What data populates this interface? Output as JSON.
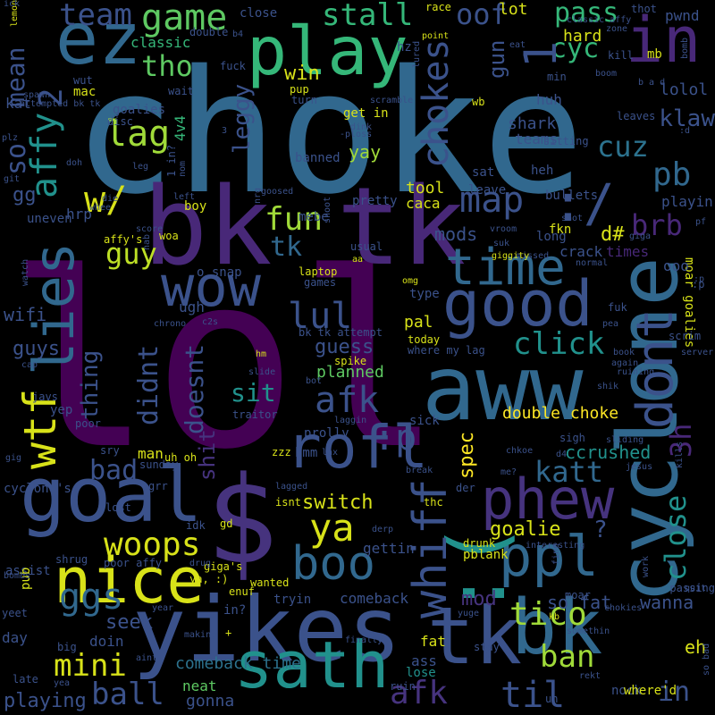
{
  "palette": {
    "background": "#000000",
    "purple": "#440154",
    "indigo": "#3b528b",
    "blue": "#31688e",
    "teal": "#21918c",
    "green": "#35b779",
    "yellow": "#d8e219"
  },
  "words": [
    {
      "text": "choke",
      "color": "#31688e"
    },
    {
      "text": "lol",
      "color": "#440154"
    },
    {
      "text": "bk tk",
      "color": "#482878"
    },
    {
      "text": "$",
      "color": "#46337e"
    },
    {
      "text": "aww",
      "color": "#31688e"
    },
    {
      "text": "yikes",
      "color": "#3b528b"
    },
    {
      "text": "goal",
      "color": "#3b528b"
    },
    {
      "text": "play",
      "color": "#35b779"
    },
    {
      "text": "cyclone",
      "color": "#31688e"
    },
    {
      "text": "tk",
      "color": "#3b528b"
    },
    {
      "text": "bk",
      "color": "#31688e"
    },
    {
      "text": "in",
      "color": "#482878"
    },
    {
      "text": "ez",
      "color": "#31688e"
    },
    {
      "text": "wow",
      "color": "#3b528b"
    },
    {
      "text": "good",
      "color": "#3b528b"
    },
    {
      "text": "nice",
      "color": "#d8e219"
    },
    {
      "text": "sath",
      "color": "#21918c"
    },
    {
      "text": "rofl",
      "color": "#3b528b"
    },
    {
      "text": "phew",
      "color": "#46337e"
    },
    {
      "text": "ppl",
      "color": "#31688e"
    },
    {
      "text": ":(",
      "color": "#21918c"
    },
    {
      "text": "dont",
      "color": "#3b528b"
    },
    {
      "text": "time",
      "color": "#31688e"
    },
    {
      "text": "lag",
      "color": "#a0da39"
    },
    {
      "text": "map",
      "color": "#3b528b"
    },
    {
      "text": ":/",
      "color": "#3b528b"
    },
    {
      "text": "game",
      "color": "#5ec962"
    },
    {
      "text": "wtf",
      "color": "#d8e219"
    },
    {
      "text": "lies",
      "color": "#31688e"
    },
    {
      "text": "boo",
      "color": "#31688e"
    },
    {
      "text": "whiff",
      "color": "#3b528b"
    },
    {
      "text": "chokes",
      "color": "#3b528b"
    },
    {
      "text": "lul",
      "color": "#3b528b"
    },
    {
      "text": "afk",
      "color": "#3b528b"
    },
    {
      "text": "click",
      "color": "#21918c"
    },
    {
      "text": "fun",
      "color": "#a0da39"
    },
    {
      "text": "woops",
      "color": "#d8e219"
    },
    {
      "text": "ya",
      "color": "#d8e219"
    },
    {
      "text": "ggs",
      "color": "#31688e"
    },
    {
      "text": "mini",
      "color": "#d8e219"
    },
    {
      "text": "ball",
      "color": "#3b528b"
    },
    {
      "text": "til",
      "color": "#3b528b"
    },
    {
      "text": "afk",
      "color": "#46337e"
    },
    {
      "text": "ban",
      "color": "#a0da39"
    },
    {
      "text": "tico",
      "color": "#a0da39"
    },
    {
      "text": "katt",
      "color": "#31688e"
    },
    {
      "text": "bad",
      "color": "#3b528b"
    },
    {
      "text": "guy",
      "color": "#bddf26"
    },
    {
      "text": "pb",
      "color": "#31688e"
    },
    {
      "text": "cuz",
      "color": "#2c728e"
    },
    {
      "text": "brb",
      "color": "#482878"
    },
    {
      "text": "team",
      "color": "#3b528b"
    },
    {
      "text": "stall",
      "color": "#35b779"
    },
    {
      "text": "oof",
      "color": "#3b528b"
    },
    {
      "text": "pass",
      "color": "#35b779"
    },
    {
      "text": "cyc",
      "color": "#35b779"
    },
    {
      "text": "tho",
      "color": "#5ec962"
    },
    {
      "text": "lolol",
      "color": "#3b528b"
    },
    {
      "text": "klaw",
      "color": "#3b528b"
    },
    {
      "text": "3h",
      "color": "#482878"
    },
    {
      "text": "close",
      "color": "#21918c"
    },
    {
      "text": "so",
      "color": "#3b528b"
    },
    {
      "text": ":p",
      "color": "#3b528b"
    },
    {
      "text": "spec",
      "color": "#fde725"
    },
    {
      "text": "double choke",
      "color": "#fde725"
    },
    {
      "text": "sit",
      "color": "#21918c"
    },
    {
      "text": "didnt",
      "color": "#3b528b"
    },
    {
      "text": "doesnt",
      "color": "#3b528b"
    },
    {
      "text": "shit",
      "color": "#46337e"
    },
    {
      "text": "thing",
      "color": "#3b528b"
    },
    {
      "text": "switch",
      "color": "#d8e219"
    },
    {
      "text": "goalie",
      "color": "#d8e219"
    },
    {
      "text": "guess",
      "color": "#3b528b"
    },
    {
      "text": "planned",
      "color": "#5ec962"
    },
    {
      "text": "comeback time",
      "color": "#2c728e"
    },
    {
      "text": "seek",
      "color": "#3b528b"
    },
    {
      "text": "so fat",
      "color": "#3b528b"
    },
    {
      "text": "wanna",
      "color": "#3b528b"
    },
    {
      "text": "mod",
      "color": "#46337e"
    },
    {
      "text": "ccrushed",
      "color": "#21918c"
    },
    {
      "text": "leggy",
      "color": "#3b528b"
    },
    {
      "text": "tk",
      "color": "#31688e"
    },
    {
      "text": "mods",
      "color": "#3b528b"
    },
    {
      "text": "gun",
      "color": "#3b528b"
    },
    {
      "text": "hard",
      "color": "#d8e219"
    },
    {
      "text": "mean",
      "color": "#3b528b"
    },
    {
      "text": "affy",
      "color": "#21918c"
    },
    {
      "text": "2",
      "color": "#3b528b"
    },
    {
      "text": "1",
      "color": "#3b528b"
    },
    {
      "text": "w/",
      "color": "#d8e219"
    },
    {
      "text": "playing",
      "color": "#3b528b"
    },
    {
      "text": "gonna",
      "color": "#3b528b"
    },
    {
      "text": "neat",
      "color": "#5ec962"
    },
    {
      "text": "guys",
      "color": "#3b528b"
    },
    {
      "text": "wifi",
      "color": "#3b528b"
    },
    {
      "text": "win",
      "color": "#d8e219"
    },
    {
      "text": "classic",
      "color": "#35b779"
    },
    {
      "text": "tool",
      "color": "#d8e219"
    },
    {
      "text": "caca",
      "color": "#d8e219"
    },
    {
      "text": "yay",
      "color": "#a0da39"
    },
    {
      "text": "pal",
      "color": "#d8e219"
    },
    {
      "text": "d#",
      "color": "#d8e219"
    },
    {
      "text": "shark",
      "color": "#3b528b"
    },
    {
      "text": "teams",
      "color": "#3b528b"
    },
    {
      "text": "huh",
      "color": "#3b528b"
    },
    {
      "text": "heh",
      "color": "#3b528b"
    },
    {
      "text": "fat",
      "color": "#d8e219"
    },
    {
      "text": "ass",
      "color": "#3b528b"
    },
    {
      "text": "lose",
      "color": "#21918c"
    },
    {
      "text": "day",
      "color": "#3b528b"
    },
    {
      "text": "doin",
      "color": "#3b528b"
    },
    {
      "text": "man",
      "color": "#d8e219"
    },
    {
      "text": "moar goalies",
      "color": "#d8e219"
    },
    {
      "text": "ooo",
      "color": "#3b528b"
    },
    {
      "text": "crack",
      "color": "#3b528b"
    },
    {
      "text": "times",
      "color": "#482878"
    },
    {
      "text": "ugh",
      "color": "#3b528b"
    },
    {
      "text": "?",
      "color": "#3b528b"
    },
    {
      "text": "eh",
      "color": "#d8e219"
    },
    {
      "text": "in",
      "color": "#3b528b"
    },
    {
      "text": "gg",
      "color": "#3b528b"
    },
    {
      "text": "hrp",
      "color": "#3b528b"
    },
    {
      "text": "mebe",
      "color": "#3b528b"
    },
    {
      "text": "banned",
      "color": "#3b528b"
    },
    {
      "text": "get in",
      "color": "#d8e219"
    },
    {
      "text": "playin",
      "color": "#3b528b"
    },
    {
      "text": "pwnd",
      "color": "#3b528b"
    },
    {
      "text": "mb",
      "color": "#d8e219"
    },
    {
      "text": "min",
      "color": "#3b528b"
    },
    {
      "text": "kill",
      "color": "#3b528b"
    },
    {
      "text": "thot",
      "color": "#3b528b"
    },
    {
      "text": "lot",
      "color": "#d8e219"
    },
    {
      "text": "race",
      "color": "#d8e219"
    },
    {
      "text": "close",
      "color": "#3b528b"
    },
    {
      "text": "double",
      "color": "#3b528b"
    },
    {
      "text": "fuck",
      "color": "#3b528b"
    },
    {
      "text": "hz",
      "color": "#3b528b"
    },
    {
      "text": "point",
      "color": "#d8e219"
    },
    {
      "text": "eat",
      "color": "#3b528b"
    },
    {
      "text": "zone",
      "color": "#3b528b"
    },
    {
      "text": "kat",
      "color": "#3b528b"
    },
    {
      "text": "mac",
      "color": "#d8e219"
    },
    {
      "text": "wait",
      "color": "#3b528b"
    },
    {
      "text": "pup",
      "color": "#d8e219"
    },
    {
      "text": "turn",
      "color": "#3b528b"
    },
    {
      "text": "wb",
      "color": "#d8e219"
    },
    {
      "text": "goalies",
      "color": "#3b528b"
    },
    {
      "text": "disc",
      "color": "#3b528b"
    },
    {
      "text": "sitting",
      "color": "#3b528b"
    },
    {
      "text": "leaves",
      "color": "#3b528b"
    },
    {
      "text": "b a d",
      "color": "#3b528b"
    },
    {
      "text": "boom",
      "color": "#3b528b"
    },
    {
      "text": "bullets",
      "color": "#3b528b"
    },
    {
      "text": "shot",
      "color": "#3b528b"
    },
    {
      "text": "fkn",
      "color": "#d8e219"
    },
    {
      "text": "sat",
      "color": "#3b528b"
    },
    {
      "text": "leave",
      "color": "#3b528b"
    },
    {
      "text": "pretty",
      "color": "#3b528b"
    },
    {
      "text": "boy",
      "color": "#d8e219"
    },
    {
      "text": "woa",
      "color": "#d8e219"
    },
    {
      "text": "uneven",
      "color": "#3b528b"
    },
    {
      "text": "o snap",
      "color": "#3b528b"
    },
    {
      "text": "laptop",
      "color": "#d8e219"
    },
    {
      "text": "games",
      "color": "#3b528b"
    },
    {
      "text": "type",
      "color": "#3b528b"
    },
    {
      "text": "today",
      "color": "#d8e219"
    },
    {
      "text": "where my lag",
      "color": "#3b528b"
    },
    {
      "text": "bk tk attempt",
      "color": "#3b528b"
    },
    {
      "text": "hm",
      "color": "#d8e219"
    },
    {
      "text": "spike",
      "color": "#d8e219"
    },
    {
      "text": "traitor",
      "color": "#3b528b"
    },
    {
      "text": "sick",
      "color": "#3b528b"
    },
    {
      "text": "prolly",
      "color": "#3b528b"
    },
    {
      "text": "zzz",
      "color": "#d8e219"
    },
    {
      "text": "hmm",
      "color": "#3b528b"
    },
    {
      "text": "lax",
      "color": "#3b528b"
    },
    {
      "text": "gettin",
      "color": "#3b528b"
    },
    {
      "text": "pblank",
      "color": "#d8e219"
    },
    {
      "text": "comeback",
      "color": "#3b528b"
    },
    {
      "text": "isnt",
      "color": "#d8e219"
    },
    {
      "text": "tryin",
      "color": "#3b528b"
    },
    {
      "text": "wanted",
      "color": "#d8e219"
    },
    {
      "text": "giga's",
      "color": "#d8e219"
    },
    {
      "text": "ya, :)",
      "color": "#d8e219"
    },
    {
      "text": "in?",
      "color": "#3b528b"
    },
    {
      "text": "sry",
      "color": "#3b528b"
    },
    {
      "text": "sunday",
      "color": "#3b528b"
    },
    {
      "text": "grr",
      "color": "#3b528b"
    },
    {
      "text": "gd",
      "color": "#d8e219"
    },
    {
      "text": "idk",
      "color": "#3b528b"
    },
    {
      "text": "lost",
      "color": "#3b528b"
    },
    {
      "text": "assist",
      "color": "#3b528b"
    },
    {
      "text": "poor affy",
      "color": "#3b528b"
    },
    {
      "text": "shrug",
      "color": "#3b528b"
    },
    {
      "text": "pub",
      "color": "#d8e219"
    },
    {
      "text": "yeet",
      "color": "#3b528b"
    },
    {
      "text": "late",
      "color": "#3b528b"
    },
    {
      "text": "yep",
      "color": "#3b528b"
    },
    {
      "text": "poor",
      "color": "#3b528b"
    },
    {
      "text": "javs",
      "color": "#3b528b"
    },
    {
      "text": "sliding",
      "color": "#3b528b"
    },
    {
      "text": "jesus",
      "color": "#3b528b"
    },
    {
      "text": "sigh",
      "color": "#3b528b"
    },
    {
      "text": "ruining",
      "color": "#3b528b"
    },
    {
      "text": "scrim",
      "color": "#3b528b"
    },
    {
      "text": "server",
      "color": "#3b528b"
    },
    {
      "text": "book",
      "color": "#3b528b"
    },
    {
      "text": "fuk",
      "color": "#3b528b"
    },
    {
      "text": "long",
      "color": "#3b528b"
    },
    {
      "text": "suk",
      "color": "#3b528b"
    },
    {
      "text": "missed",
      "color": "#3b528b"
    },
    {
      "text": "giggity",
      "color": "#d8e219"
    },
    {
      "text": "vroom",
      "color": "#3b528b"
    },
    {
      "text": "me?",
      "color": "#3b528b"
    },
    {
      "text": "break",
      "color": "#3b528b"
    },
    {
      "text": "der",
      "color": "#3b528b"
    },
    {
      "text": "thc",
      "color": "#d8e219"
    },
    {
      "text": "drunk",
      "color": "#d8e219"
    },
    {
      "text": "interesting",
      "color": "#3b528b"
    },
    {
      "text": "moar",
      "color": "#3b528b"
    },
    {
      "text": "passing",
      "color": "#3b528b"
    },
    {
      "text": "chokies",
      "color": "#3b528b"
    },
    {
      "text": "kb",
      "color": "#d8e219"
    },
    {
      "text": "somethin",
      "color": "#3b528b"
    },
    {
      "text": "rekt",
      "color": "#3b528b"
    },
    {
      "text": "nock",
      "color": "#3b528b"
    },
    {
      "text": "where'd",
      "color": "#d8e219"
    },
    {
      "text": "uh",
      "color": "#3b528b"
    },
    {
      "text": "stay",
      "color": "#3b528b"
    },
    {
      "text": "noo",
      "color": "#3b528b"
    },
    {
      "text": "yuge",
      "color": "#3b528b"
    },
    {
      "text": "ruin",
      "color": "#3b528b"
    },
    {
      "text": "finally",
      "color": "#3b528b"
    },
    {
      "text": "making",
      "color": "#3b528b"
    },
    {
      "text": "aint",
      "color": "#3b528b"
    },
    {
      "text": "big",
      "color": "#3b528b"
    },
    {
      "text": "yea",
      "color": "#3b528b"
    },
    {
      "text": "year",
      "color": "#3b528b"
    },
    {
      "text": "enuf",
      "color": "#d8e219"
    },
    {
      "text": "drug",
      "color": "#3b528b"
    },
    {
      "text": "cyclone's",
      "color": "#3b528b"
    },
    {
      "text": "gig",
      "color": "#3b528b"
    },
    {
      "text": "bombs",
      "color": "#3b528b"
    },
    {
      "text": "cap",
      "color": "#3b528b"
    },
    {
      "text": "watch",
      "color": "#3b528b"
    },
    {
      "text": "chrono",
      "color": "#3b528b"
    },
    {
      "text": "c2s",
      "color": "#3b528b"
    },
    {
      "text": "slide",
      "color": "#3b528b"
    },
    {
      "text": "laggin",
      "color": "#3b528b"
    },
    {
      "text": "bot",
      "color": "#3b528b"
    },
    {
      "text": "shoot",
      "color": "#3b528b"
    },
    {
      "text": "aa",
      "color": "#d8e219"
    },
    {
      "text": "usual",
      "color": "#3b528b"
    },
    {
      "text": "omg",
      "color": "#d8e219"
    },
    {
      "text": "lagged",
      "color": "#3b528b"
    },
    {
      "text": "derp",
      "color": "#3b528b"
    },
    {
      "text": "uh oh",
      "color": "#d8e219"
    },
    {
      "text": "chkoe",
      "color": "#3b528b"
    },
    {
      "text": "d4",
      "color": "#3b528b"
    },
    {
      "text": "kills",
      "color": "#3b528b"
    },
    {
      "text": "shik",
      "color": "#3b528b"
    },
    {
      "text": "again",
      "color": "#3b528b"
    },
    {
      "text": "pea",
      "color": "#3b528b"
    },
    {
      "text": "normal",
      "color": "#3b528b"
    },
    {
      "text": "giga",
      "color": "#3b528b"
    },
    {
      "text": "pf",
      "color": "#3b528b"
    },
    {
      "text": ":p",
      "color": "#3b528b"
    },
    {
      "text": ":d",
      "color": "#3b528b"
    },
    {
      "text": "bomb",
      "color": "#3b528b"
    },
    {
      "text": "classic affy",
      "color": "#3b528b"
    },
    {
      "text": "lemon",
      "color": "#d8e219"
    },
    {
      "text": "ick",
      "color": "#3b528b"
    },
    {
      "text": "plz",
      "color": "#3b528b"
    },
    {
      "text": "spawn",
      "color": "#3b528b"
    },
    {
      "text": "wut",
      "color": "#3b528b"
    },
    {
      "text": "attempted bk tk",
      "color": "#3b528b"
    },
    {
      "text": "dink",
      "color": "#3b528b"
    },
    {
      "text": "-ploss",
      "color": "#3b528b"
    },
    {
      "text": "scramble",
      "color": "#3b528b"
    },
    {
      "text": "lured",
      "color": "#3b528b"
    },
    {
      "text": "doh",
      "color": "#3b528b"
    },
    {
      "text": "git",
      "color": "#3b528b"
    },
    {
      "text": "leg",
      "color": "#3b528b"
    },
    {
      "text": "whee",
      "color": "#3b528b"
    },
    {
      "text": "die",
      "color": "#3b528b"
    },
    {
      "text": "affy's",
      "color": "#d8e219"
    },
    {
      "text": "score",
      "color": "#3b528b"
    },
    {
      "text": "nab",
      "color": "#3b528b"
    },
    {
      "text": "goosed",
      "color": "#3b528b"
    },
    {
      "text": "nrg",
      "color": "#3b528b"
    },
    {
      "text": "left",
      "color": "#3b528b"
    },
    {
      "text": "nom",
      "color": "#3b528b"
    },
    {
      "text": "4v4",
      "color": "#35b779"
    },
    {
      "text": "1 in?",
      "color": "#3b528b"
    },
    {
      "text": "3",
      "color": "#3b528b"
    },
    {
      "text": "fine",
      "color": "#3b528b"
    },
    {
      "text": "work",
      "color": "#3b528b"
    },
    {
      "text": "quit",
      "color": "#3b528b"
    },
    {
      "text": "so bad",
      "color": "#3b528b"
    },
    {
      "text": "b4",
      "color": "#3b528b"
    },
    {
      "text": ":p",
      "color": "#3b528b"
    },
    {
      "text": "+",
      "color": "#d8e219"
    }
  ]
}
